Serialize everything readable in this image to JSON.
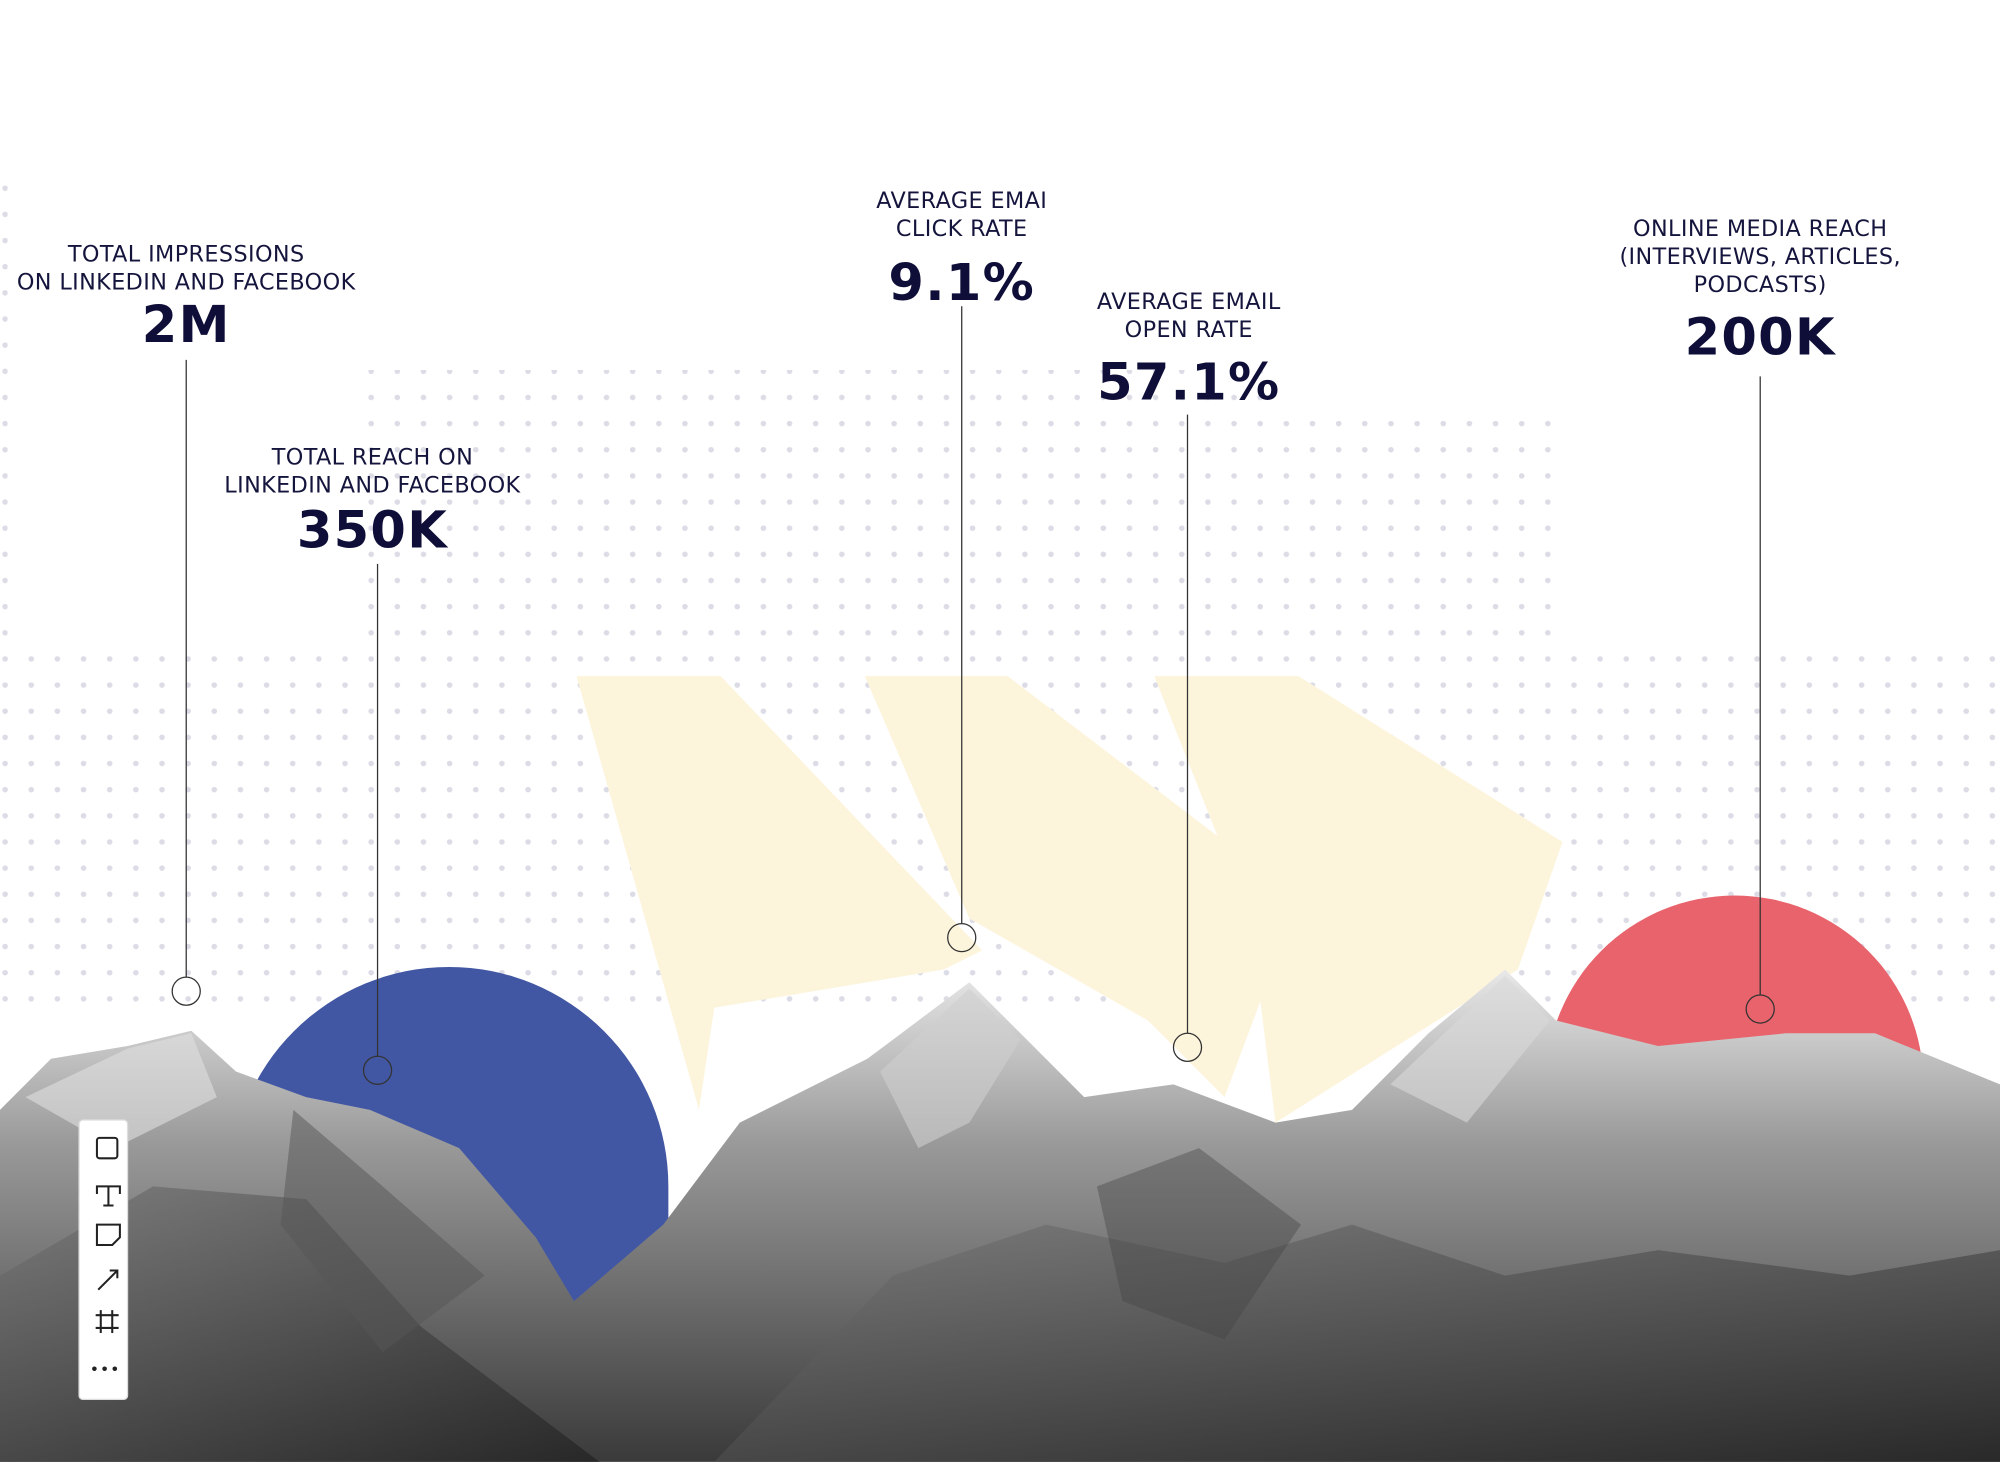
{
  "stats": [
    {
      "label": [
        "TOTAL IMPRESSIONS",
        "ON LINKEDIN AND FACEBOOK"
      ],
      "value": "2M"
    },
    {
      "label": [
        "TOTAL REACH ON",
        "LINKEDIN AND FACEBOOK"
      ],
      "value": "350K"
    },
    {
      "label": [
        "AVERAGE EMAI",
        "CLICK RATE"
      ],
      "value": "9.1%"
    },
    {
      "label": [
        "AVERAGE EMAIL",
        "OPEN RATE"
      ],
      "value": "57.1%"
    },
    {
      "label": [
        "ONLINE MEDIA REACH",
        "(INTERVIEWS, ARTICLES,",
        "PODCASTS)"
      ],
      "value": "200K"
    }
  ]
}
